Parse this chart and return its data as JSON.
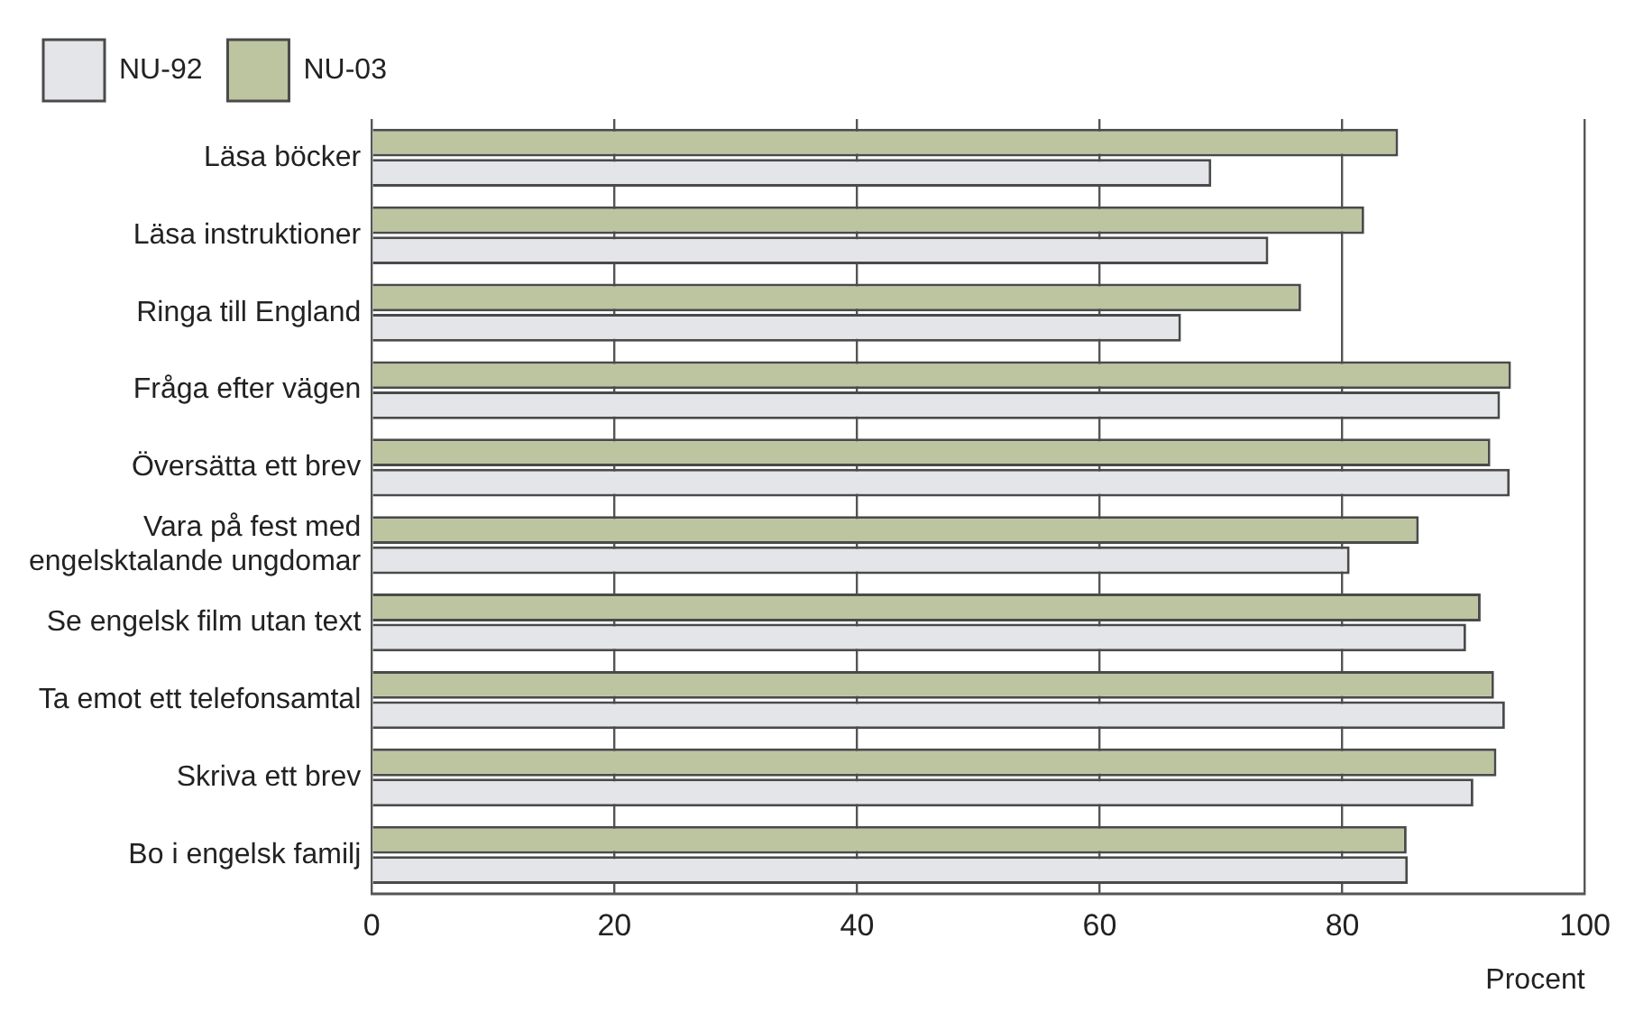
{
  "chart_data": {
    "type": "bar",
    "orientation": "horizontal",
    "xlabel": "Procent",
    "categories": [
      "Läsa böcker",
      "Läsa instruktioner",
      "Ringa till England",
      "Fråga efter vägen",
      "Översätta ett brev",
      "Vara på fest med engelsktalande ungdomar",
      "Se engelsk film utan text",
      "Ta emot ett telefonsamtal",
      "Skriva ett brev",
      "Bo i engelsk familj"
    ],
    "series": [
      {
        "name": "NU-92",
        "color": "#e4e5e8",
        "values": [
          69.2,
          73.9,
          66.7,
          93.0,
          93.8,
          80.6,
          90.2,
          93.4,
          90.8,
          85.4
        ]
      },
      {
        "name": "NU-03",
        "color": "#bcc5a0",
        "values": [
          84.6,
          81.8,
          76.6,
          93.9,
          92.2,
          86.3,
          91.4,
          92.5,
          92.7,
          85.3
        ]
      }
    ],
    "xlim": [
      0,
      100
    ],
    "xticks": [
      0,
      20,
      40,
      60,
      80,
      100
    ],
    "grid": "x",
    "legend": "top"
  }
}
